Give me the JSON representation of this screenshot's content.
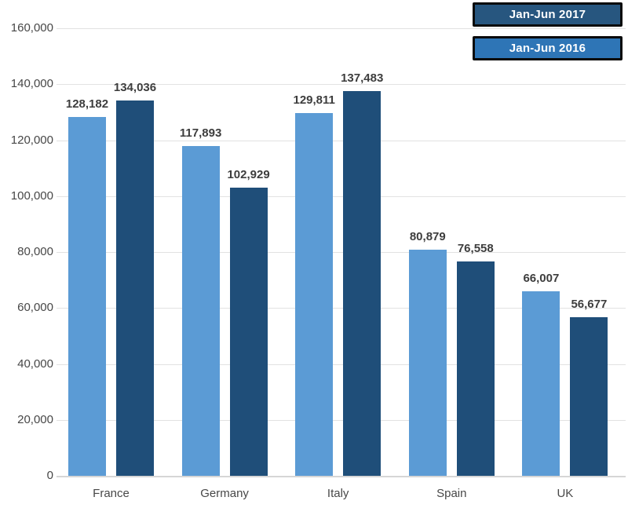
{
  "chart_data": {
    "type": "bar",
    "title": "",
    "xlabel": "",
    "ylabel": "",
    "categories": [
      "France",
      "Germany",
      "Italy",
      "Spain",
      "UK"
    ],
    "series": [
      {
        "name": "Jan-Jun 2016",
        "color": "#5B9BD5",
        "values": [
          128182,
          117893,
          129811,
          80879,
          66007
        ],
        "labels": [
          "128,182",
          "117,893",
          "129,811",
          "80,879",
          "66,007"
        ]
      },
      {
        "name": "Jan-Jun 2017",
        "color": "#1F4E79",
        "values": [
          134036,
          102929,
          137483,
          76558,
          56677
        ],
        "labels": [
          "134,036",
          "102,929",
          "137,483",
          "76,558",
          "56,677"
        ]
      }
    ],
    "ylim": [
      0,
      160000
    ],
    "ytick_step": 20000,
    "ytick_labels": [
      "0",
      "20,000",
      "40,000",
      "60,000",
      "80,000",
      "100,000",
      "120,000",
      "140,000",
      "160,000"
    ],
    "grid": true,
    "legend_position": "top-right"
  },
  "legend": {
    "items": [
      {
        "label": "Jan-Jun 2017",
        "bg": "#27567F",
        "border": "#0a0a0a"
      },
      {
        "label": "Jan-Jun 2016",
        "bg": "#2E75B6",
        "border": "#0a0a0a"
      }
    ]
  },
  "colors": {
    "background": "#ffffff",
    "gridline": "#e2e2e2",
    "axis_line": "#d6d6d6",
    "tick_text": "#474747",
    "value_label_text": "#3d3d3d",
    "legend_text": "#ffffff"
  }
}
